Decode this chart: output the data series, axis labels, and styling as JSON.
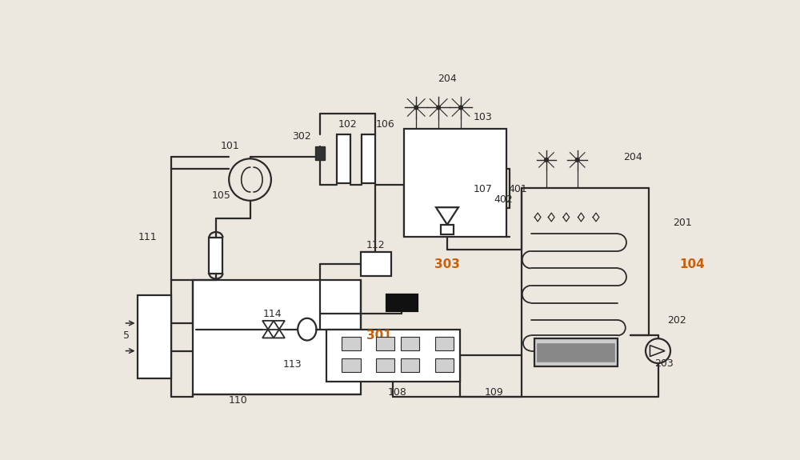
{
  "bg_color": "#ede8df",
  "lc": "#2a2a2a",
  "orange": "#c8600a",
  "figsize": [
    10.0,
    5.75
  ],
  "dpi": 100,
  "lw": 1.6
}
